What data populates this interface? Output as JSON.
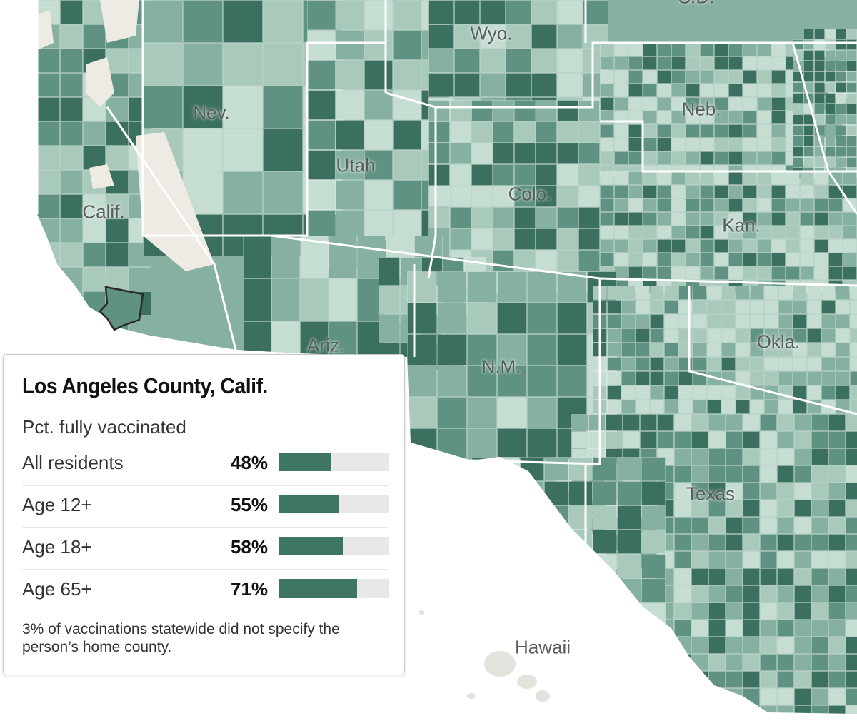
{
  "map": {
    "state_labels": [
      {
        "key": "wyo",
        "text": "Wyo."
      },
      {
        "key": "nev",
        "text": "Nev."
      },
      {
        "key": "neb",
        "text": "Neb."
      },
      {
        "key": "utah",
        "text": "Utah"
      },
      {
        "key": "colo",
        "text": "Colo."
      },
      {
        "key": "calif",
        "text": "Calif."
      },
      {
        "key": "kan",
        "text": "Kan."
      },
      {
        "key": "ariz",
        "text": "Ariz."
      },
      {
        "key": "okla",
        "text": "Okla."
      },
      {
        "key": "nm",
        "text": "N.M."
      },
      {
        "key": "texas",
        "text": "Texas"
      },
      {
        "key": "hawaii",
        "text": "Hawaii"
      },
      {
        "key": "sd",
        "text": "S.D."
      }
    ],
    "colors": {
      "lightest": "#c6ddd2",
      "light": "#a9c9bb",
      "medium": "#86b0a0",
      "dark": "#5f9282",
      "darkest": "#3b6f5f",
      "no_data": "#eeebe4",
      "state_border": "#ffffff",
      "highlight_border": "#2a2a2a"
    },
    "highlighted_county": "Los Angeles County, Calif."
  },
  "tooltip": {
    "title": "Los Angeles County, Calif.",
    "subtitle": "Pct. fully vaccinated",
    "rows": [
      {
        "label": "All residents",
        "value": "48%",
        "fraction": 0.48
      },
      {
        "label": "Age 12+",
        "value": "55%",
        "fraction": 0.55
      },
      {
        "label": "Age 18+",
        "value": "58%",
        "fraction": 0.58
      },
      {
        "label": "Age 65+",
        "value": "71%",
        "fraction": 0.71
      }
    ],
    "note": "3% of vaccinations statewide did not specify the person’s home county.",
    "bar_color": "#3f7565",
    "track_color": "#e8e8e8"
  }
}
